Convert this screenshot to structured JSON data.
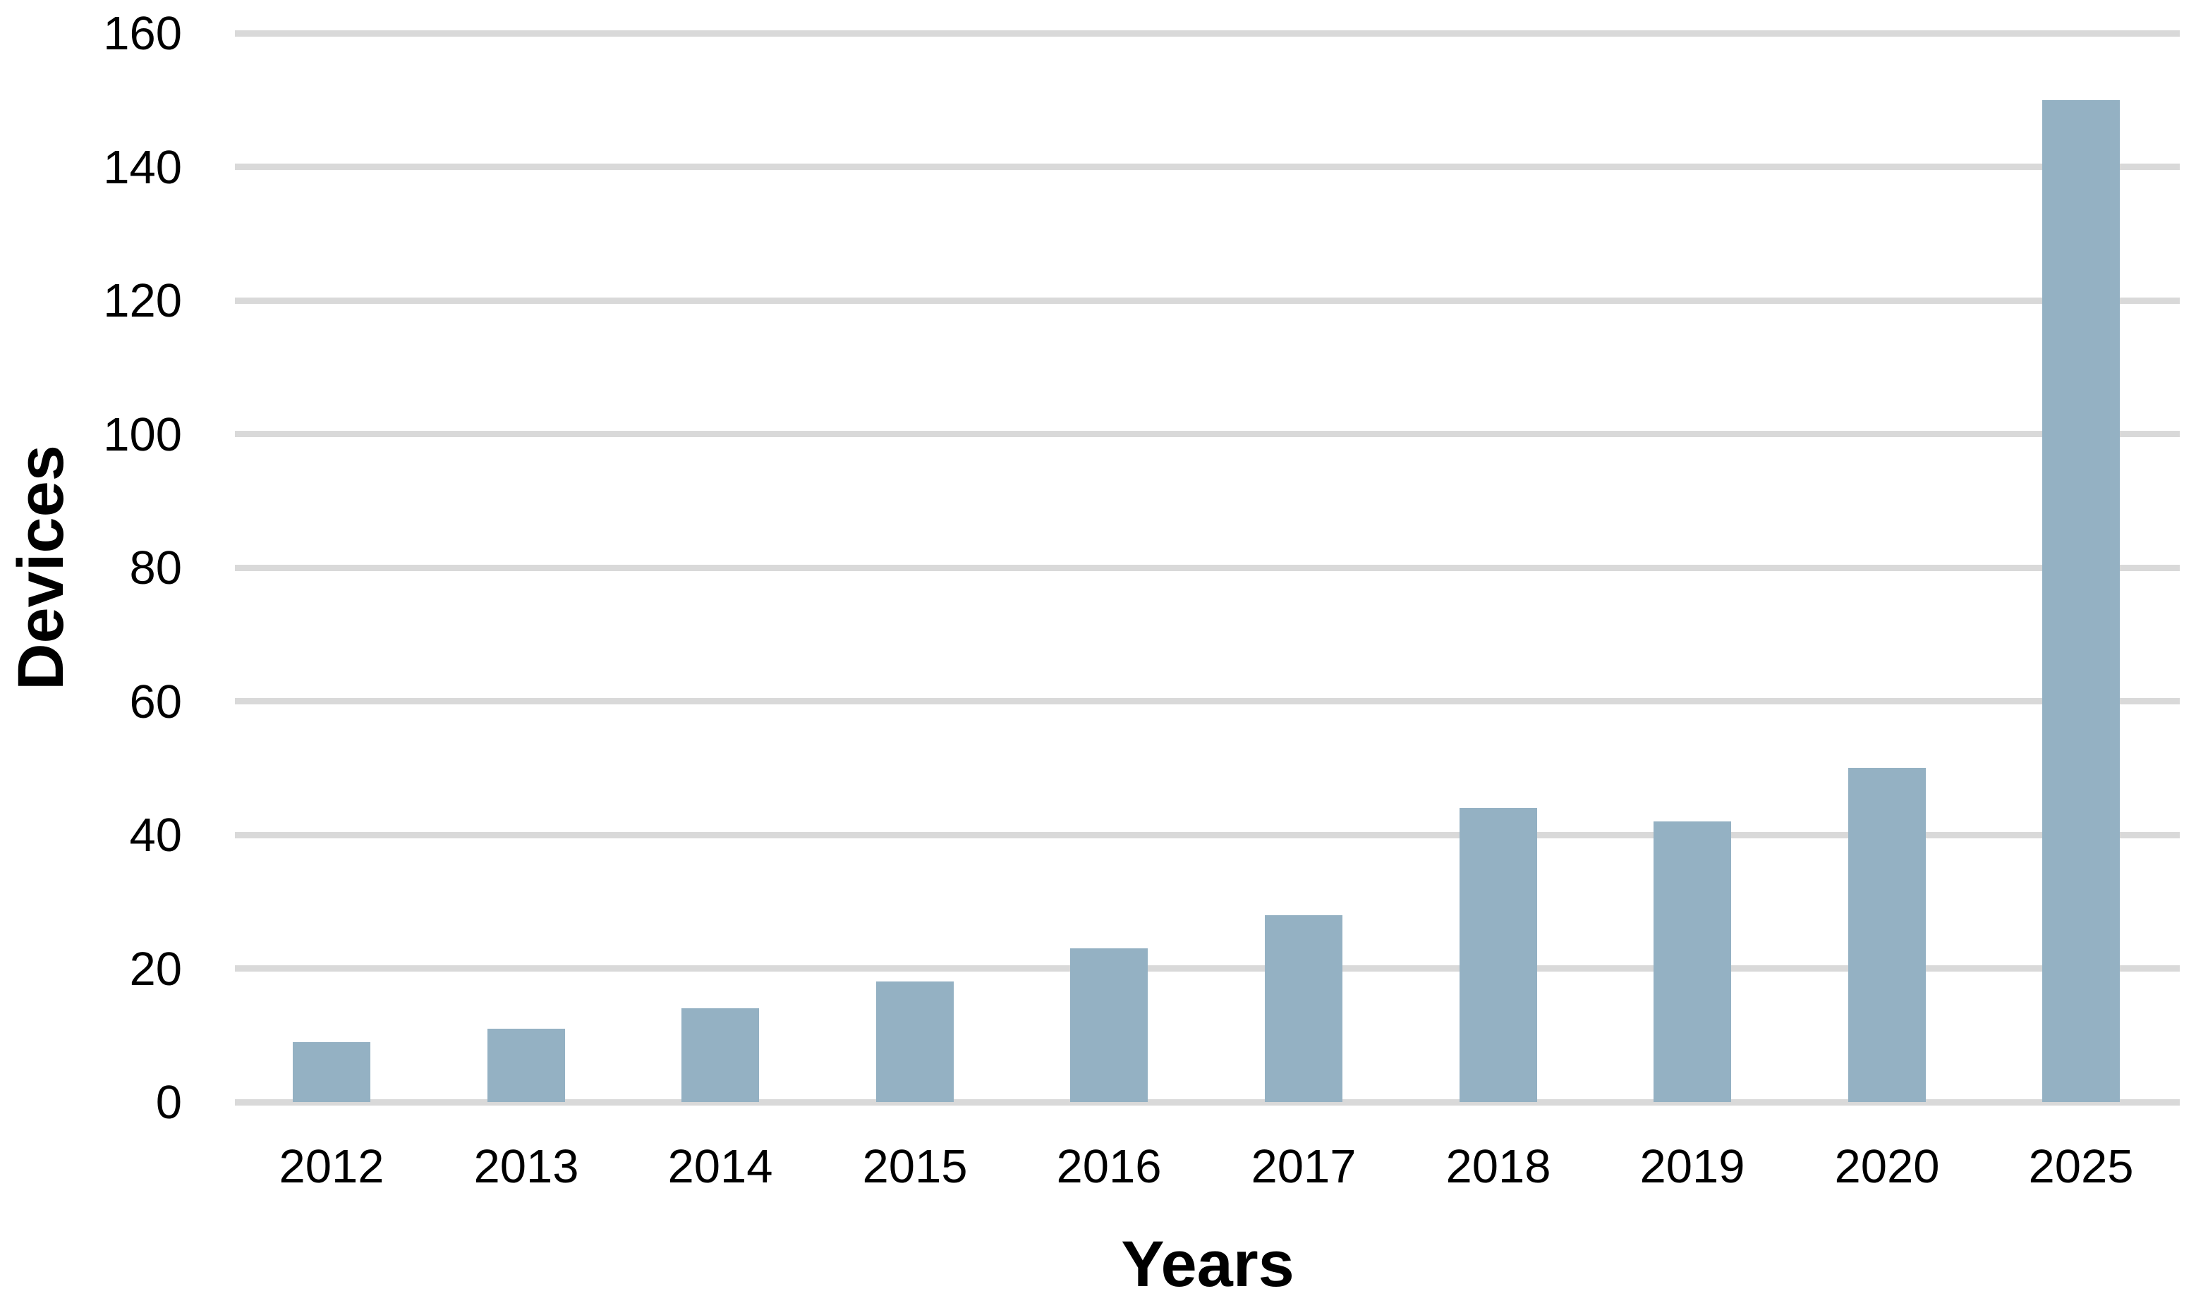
{
  "chart_data": {
    "type": "bar",
    "title": "",
    "xlabel": "Years",
    "ylabel": "Devices",
    "categories": [
      "2012",
      "2013",
      "2014",
      "2015",
      "2016",
      "2017",
      "2018",
      "2019",
      "2020",
      "2025"
    ],
    "values": [
      9,
      11,
      14,
      18,
      23,
      28,
      44,
      42,
      50,
      150
    ],
    "ylim": [
      0,
      160
    ],
    "ytick_step": 20,
    "yticks": [
      0,
      20,
      40,
      60,
      80,
      100,
      120,
      140,
      160
    ],
    "grid": true,
    "legend_position": "none",
    "bar_color": "#94b1c3",
    "gridline_color": "#d9d9d9",
    "axis_text_color": "#000000",
    "background_color": "#ffffff"
  }
}
